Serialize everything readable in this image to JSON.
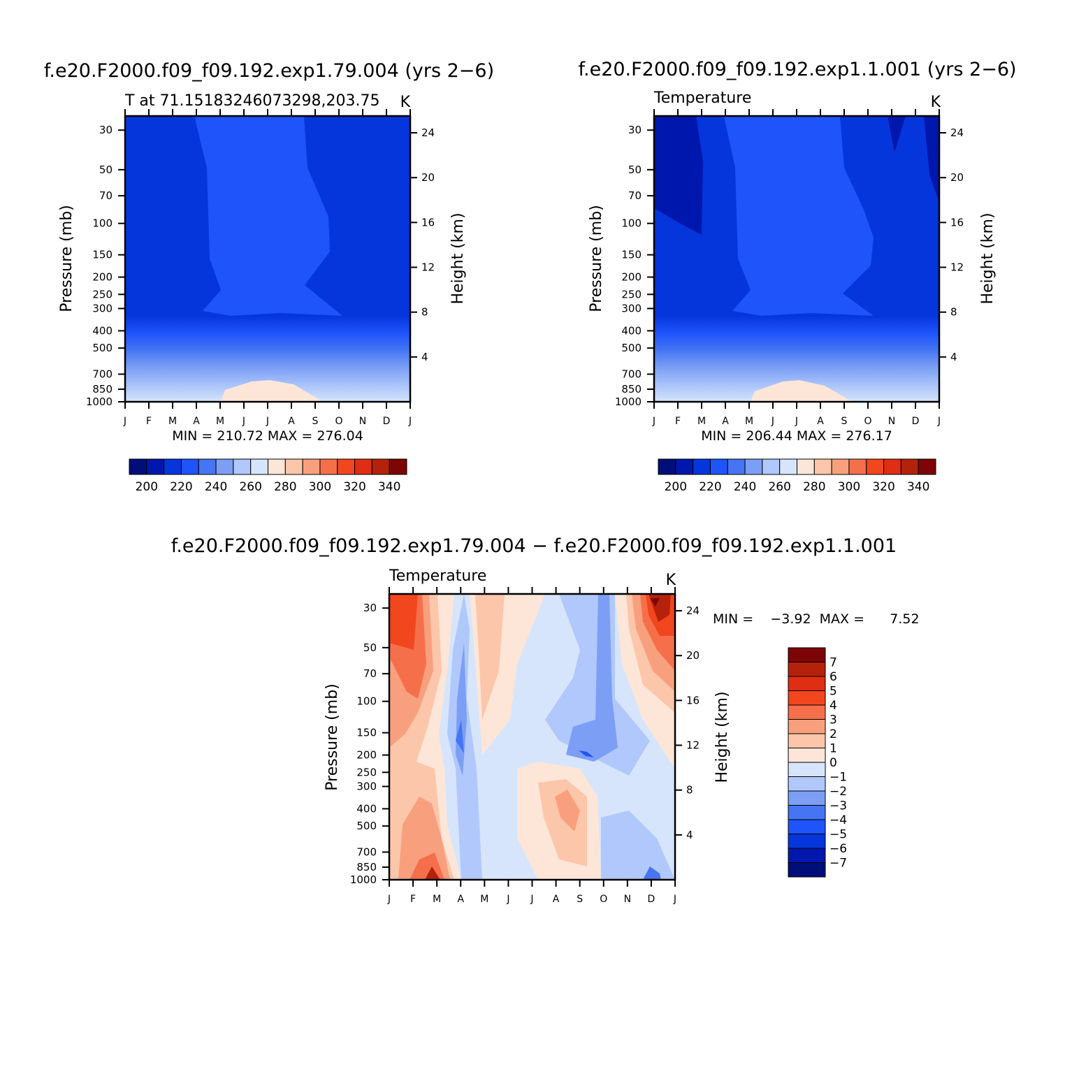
{
  "figure": {
    "left_panel_title": "f.e20.F2000.f09_f09.192.exp1.79.004 (yrs 2−6)",
    "right_panel_title": "f.e20.F2000.f09_f09.192.exp1.1.001 (yrs 2−6)",
    "bottom_panel_title": "f.e20.F2000.f09_f09.192.exp1.79.004 − f.e20.F2000.f09_f09.192.exp1.1.001"
  },
  "chart_data": [
    {
      "type": "heatmap",
      "subtitle_left": "T at 71.15183246073298,203.75",
      "units": "K",
      "xlabel": "",
      "ylabel": "Pressure (mb)",
      "y2label": "Height (km)",
      "months": [
        "J",
        "F",
        "M",
        "A",
        "M",
        "J",
        "J",
        "A",
        "S",
        "O",
        "N",
        "D",
        "J"
      ],
      "pressure_ticks": [
        "30",
        "50",
        "70",
        "100",
        "150",
        "200",
        "250",
        "300",
        "400",
        "500",
        "700",
        "850",
        "1000"
      ],
      "height_ticks": [
        "24",
        "20",
        "16",
        "12",
        "8",
        "4"
      ],
      "min_max_text": "MIN = 210.72  MAX = 276.04",
      "min": 210.72,
      "max": 276.04,
      "colorbar": {
        "orientation": "horizontal",
        "levels": [
          195,
          205,
          215,
          225,
          235,
          245,
          255,
          265,
          275,
          285,
          295,
          305,
          315,
          325,
          335,
          345
        ],
        "tick_labels": [
          "200",
          "220",
          "240",
          "260",
          "280",
          "300",
          "320",
          "340"
        ],
        "colors": [
          "#000e7a",
          "#0017ad",
          "#0536dc",
          "#1e54fa",
          "#4575f2",
          "#7c9ff5",
          "#b0c8fb",
          "#d6e5fb",
          "#fde6d8",
          "#fcc6aa",
          "#f8a07d",
          "#f66f4b",
          "#f2461e",
          "#df2e13",
          "#b5220b",
          "#7e0505"
        ]
      }
    },
    {
      "type": "heatmap",
      "subtitle_left": "Temperature",
      "units": "K",
      "xlabel": "",
      "ylabel": "Pressure (mb)",
      "y2label": "Height (km)",
      "months": [
        "J",
        "F",
        "M",
        "A",
        "M",
        "J",
        "J",
        "A",
        "S",
        "O",
        "N",
        "D",
        "J"
      ],
      "pressure_ticks": [
        "30",
        "50",
        "70",
        "100",
        "150",
        "200",
        "250",
        "300",
        "400",
        "500",
        "700",
        "850",
        "1000"
      ],
      "height_ticks": [
        "24",
        "20",
        "16",
        "12",
        "8",
        "4"
      ],
      "min_max_text": "MIN = 206.44  MAX = 276.17",
      "min": 206.44,
      "max": 276.17,
      "colorbar": {
        "orientation": "horizontal",
        "levels": [
          195,
          205,
          215,
          225,
          235,
          245,
          255,
          265,
          275,
          285,
          295,
          305,
          315,
          325,
          335,
          345
        ],
        "tick_labels": [
          "200",
          "220",
          "240",
          "260",
          "280",
          "300",
          "320",
          "340"
        ],
        "colors": [
          "#000e7a",
          "#0017ad",
          "#0536dc",
          "#1e54fa",
          "#4575f2",
          "#7c9ff5",
          "#b0c8fb",
          "#d6e5fb",
          "#fde6d8",
          "#fcc6aa",
          "#f8a07d",
          "#f66f4b",
          "#f2461e",
          "#df2e13",
          "#b5220b",
          "#7e0505"
        ]
      }
    },
    {
      "type": "heatmap",
      "subtitle_left": "Temperature",
      "units": "K",
      "xlabel": "",
      "ylabel": "Pressure (mb)",
      "y2label": "Height (km)",
      "months": [
        "J",
        "F",
        "M",
        "A",
        "M",
        "J",
        "J",
        "A",
        "S",
        "O",
        "N",
        "D",
        "J"
      ],
      "pressure_ticks": [
        "30",
        "50",
        "70",
        "100",
        "150",
        "200",
        "250",
        "300",
        "400",
        "500",
        "700",
        "850",
        "1000"
      ],
      "height_ticks": [
        "24",
        "20",
        "16",
        "12",
        "8",
        "4"
      ],
      "min_max_text": "MIN =    −3.92  MAX =      7.52",
      "min": -3.92,
      "max": 7.52,
      "colorbar": {
        "orientation": "vertical",
        "tick_labels": [
          "7",
          "6",
          "5",
          "4",
          "3",
          "2",
          "1",
          "0",
          "−1",
          "−2",
          "−3",
          "−4",
          "−5",
          "−6",
          "−7"
        ],
        "colors": [
          "#7e0505",
          "#b5220b",
          "#df2e13",
          "#f2461e",
          "#f66f4b",
          "#f8a07d",
          "#fcc6aa",
          "#fde6d8",
          "#d6e5fb",
          "#b0c8fb",
          "#7c9ff5",
          "#4575f2",
          "#1e54fa",
          "#0536dc",
          "#0017ad",
          "#000e7a"
        ]
      }
    }
  ]
}
